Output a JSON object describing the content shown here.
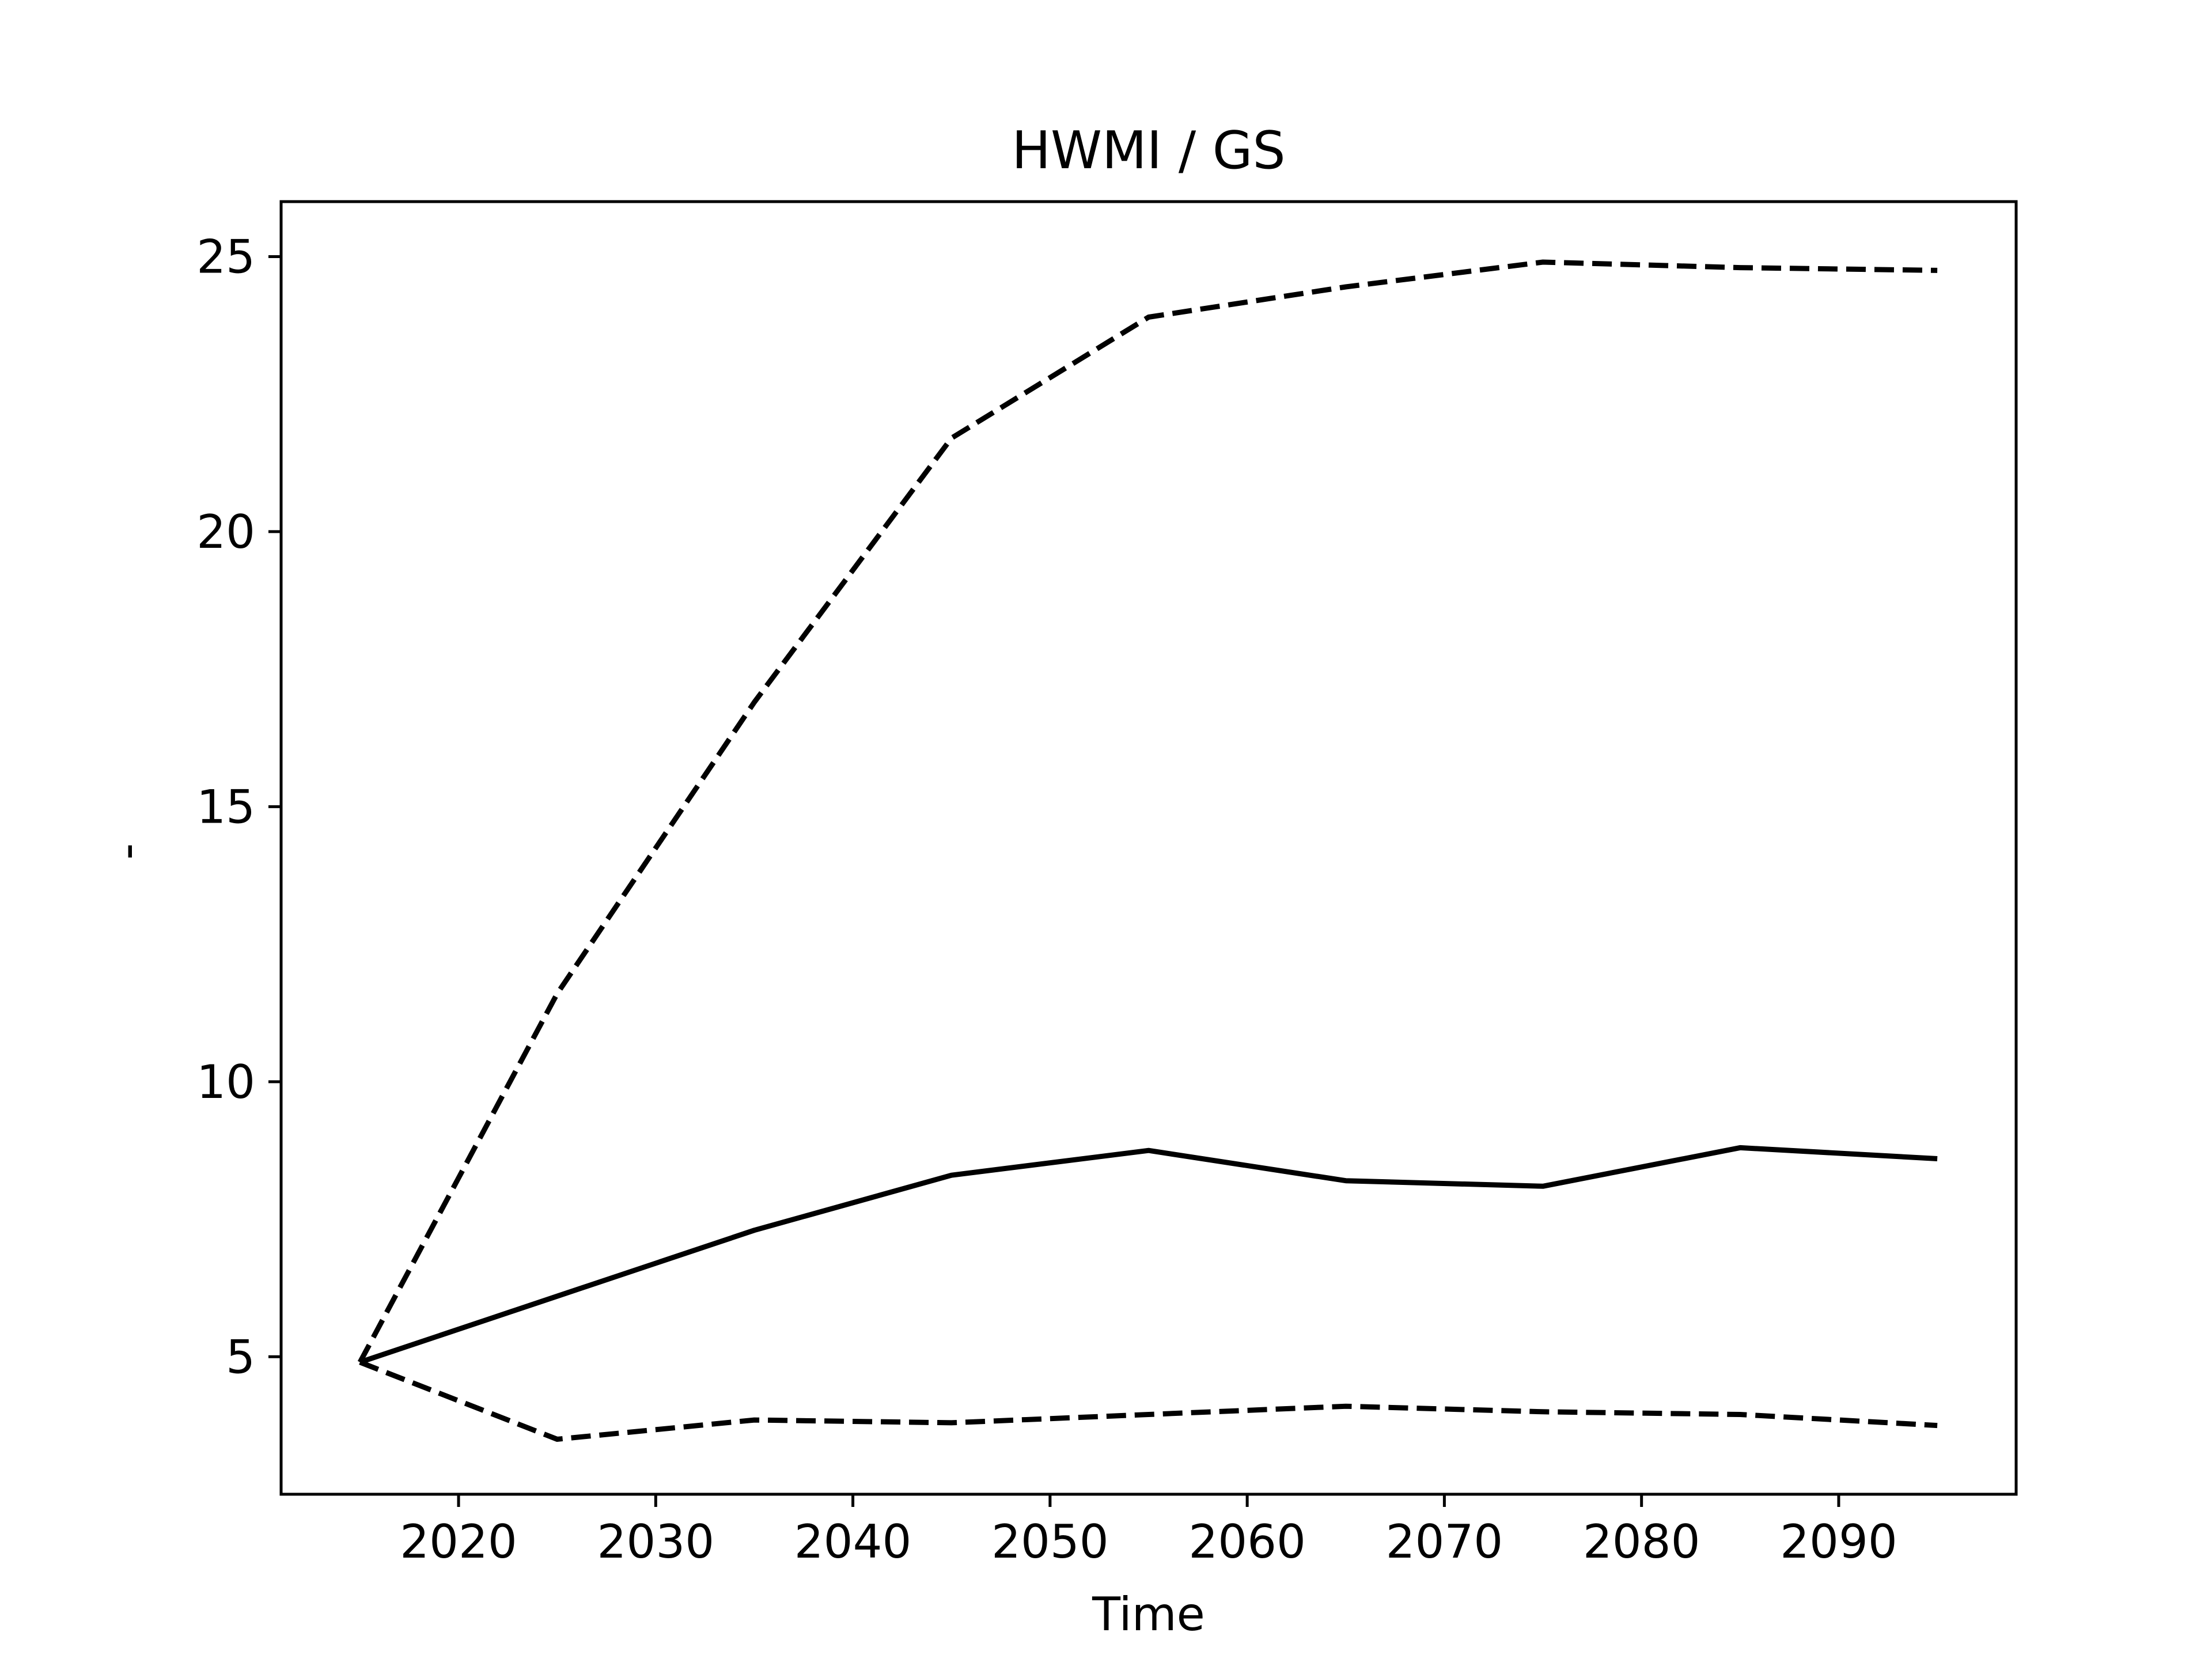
{
  "chart_data": {
    "type": "line",
    "title": "HWMI / GS",
    "xlabel": "Time",
    "ylabel": "-",
    "x": [
      2015,
      2025,
      2035,
      2045,
      2055,
      2065,
      2075,
      2085,
      2095
    ],
    "xlim": [
      2011,
      2099
    ],
    "ylim": [
      2.5,
      26
    ],
    "xticks": [
      2020,
      2030,
      2040,
      2050,
      2060,
      2070,
      2080,
      2090
    ],
    "yticks": [
      5,
      10,
      15,
      20,
      25
    ],
    "grid": false,
    "series": [
      {
        "style": "solid",
        "color": "#000000",
        "values": [
          4.9,
          6.1,
          7.3,
          8.3,
          8.75,
          8.2,
          8.1,
          8.8,
          8.6
        ]
      },
      {
        "style": "dashed",
        "color": "#000000",
        "values": [
          4.9,
          11.6,
          16.9,
          21.7,
          23.9,
          24.45,
          24.9,
          24.8,
          24.75
        ]
      },
      {
        "style": "dashed",
        "color": "#000000",
        "values": [
          4.9,
          3.5,
          3.85,
          3.8,
          3.95,
          4.1,
          4.0,
          3.95,
          3.75
        ]
      }
    ]
  }
}
